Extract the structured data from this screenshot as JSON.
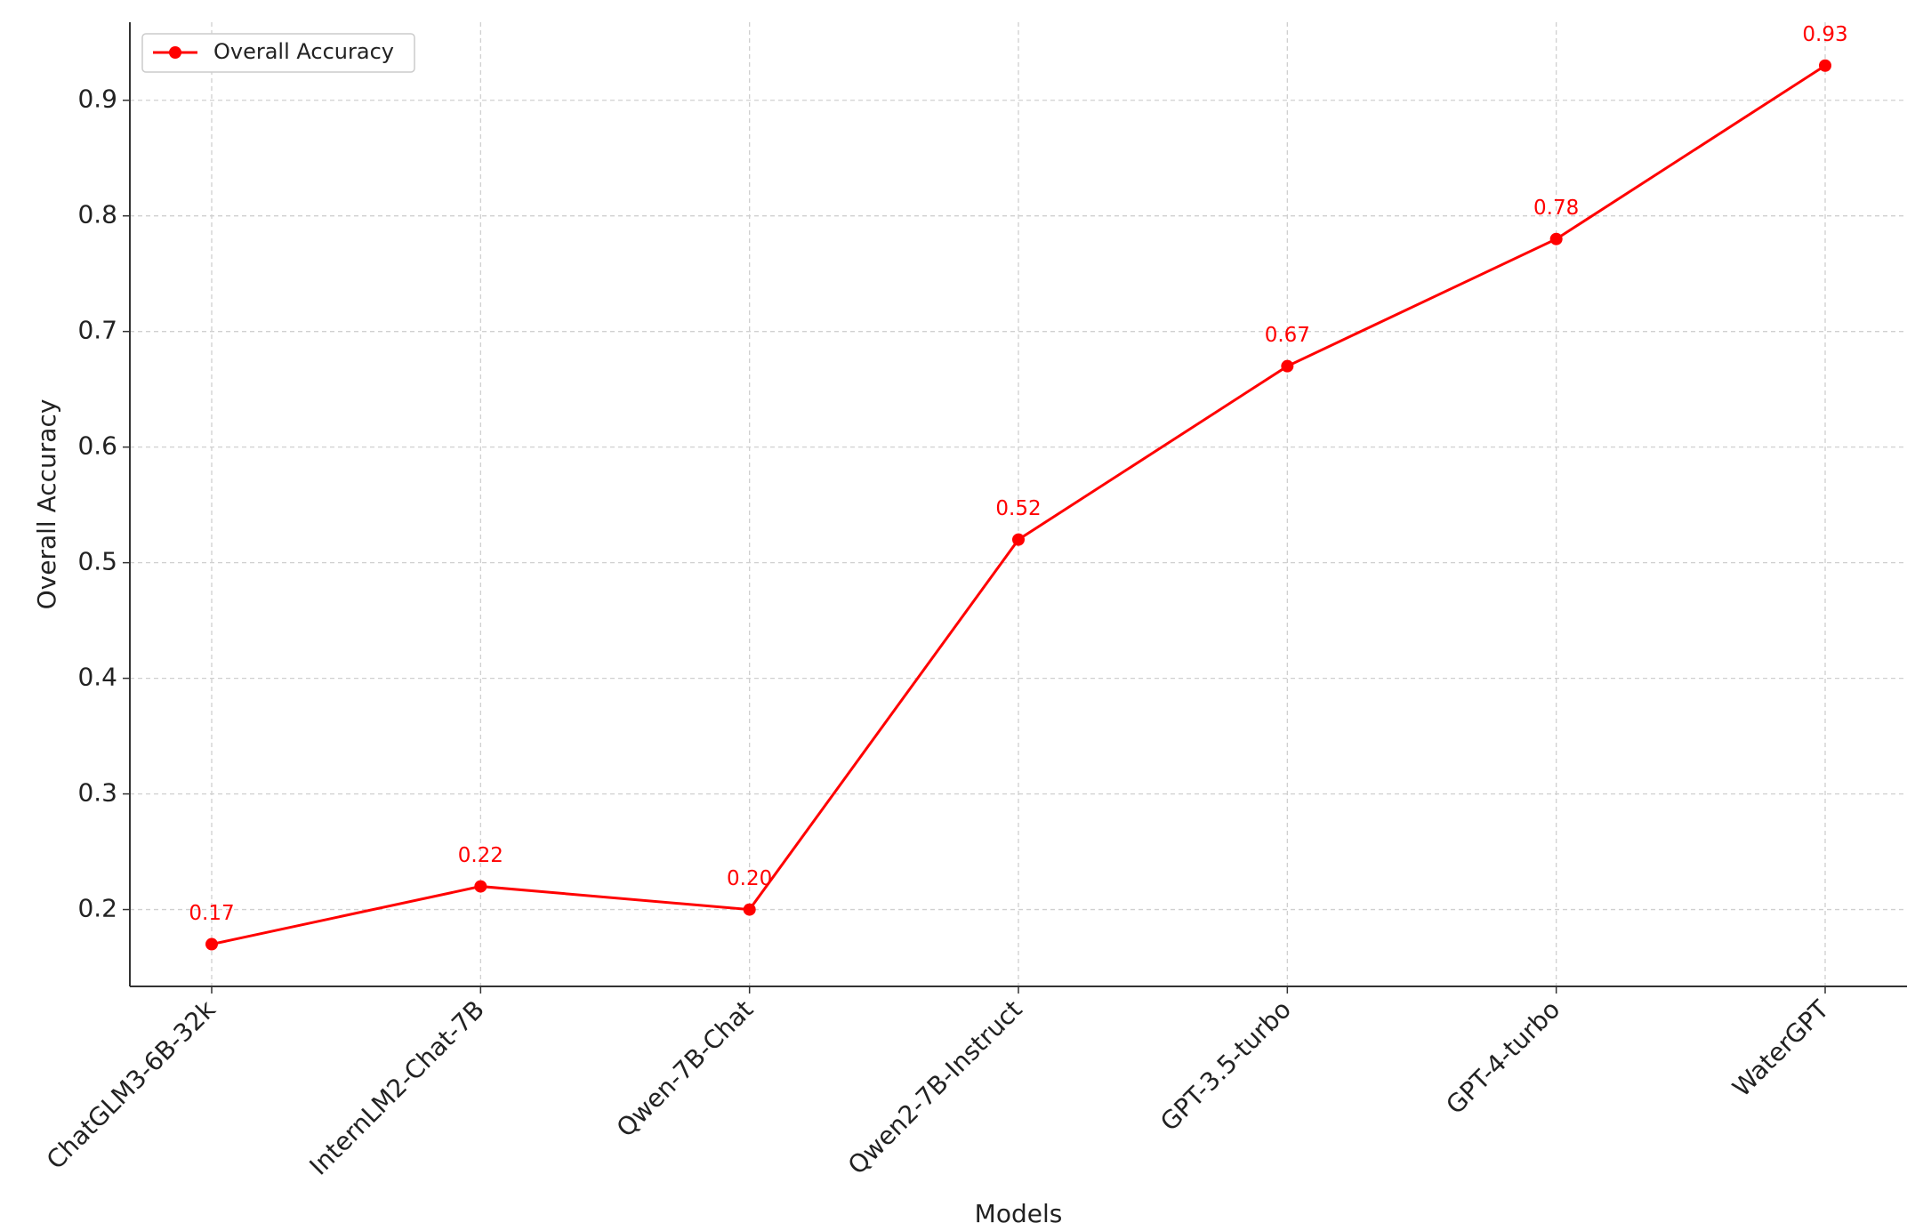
{
  "chart_data": {
    "type": "line",
    "x_label": "Models",
    "y_label": "Overall Accuracy",
    "categories": [
      "ChatGLM3-6B-32k",
      "InternLM2-Chat-7B",
      "Qwen-7B-Chat",
      "Qwen2-7B-Instruct",
      "GPT-3.5-turbo",
      "GPT-4-turbo",
      "WaterGPT"
    ],
    "series": [
      {
        "name": "Overall Accuracy",
        "color": "#ff0000",
        "values": [
          0.17,
          0.22,
          0.2,
          0.52,
          0.67,
          0.78,
          0.93
        ],
        "value_labels": [
          "0.17",
          "0.22",
          "0.20",
          "0.52",
          "0.67",
          "0.78",
          "0.93"
        ]
      }
    ],
    "ylim": [
      0.1335,
      0.9675
    ],
    "yticks": [
      0.2,
      0.3,
      0.4,
      0.5,
      0.6,
      0.7,
      0.8,
      0.9
    ],
    "grid": true,
    "legend": "upper left"
  }
}
